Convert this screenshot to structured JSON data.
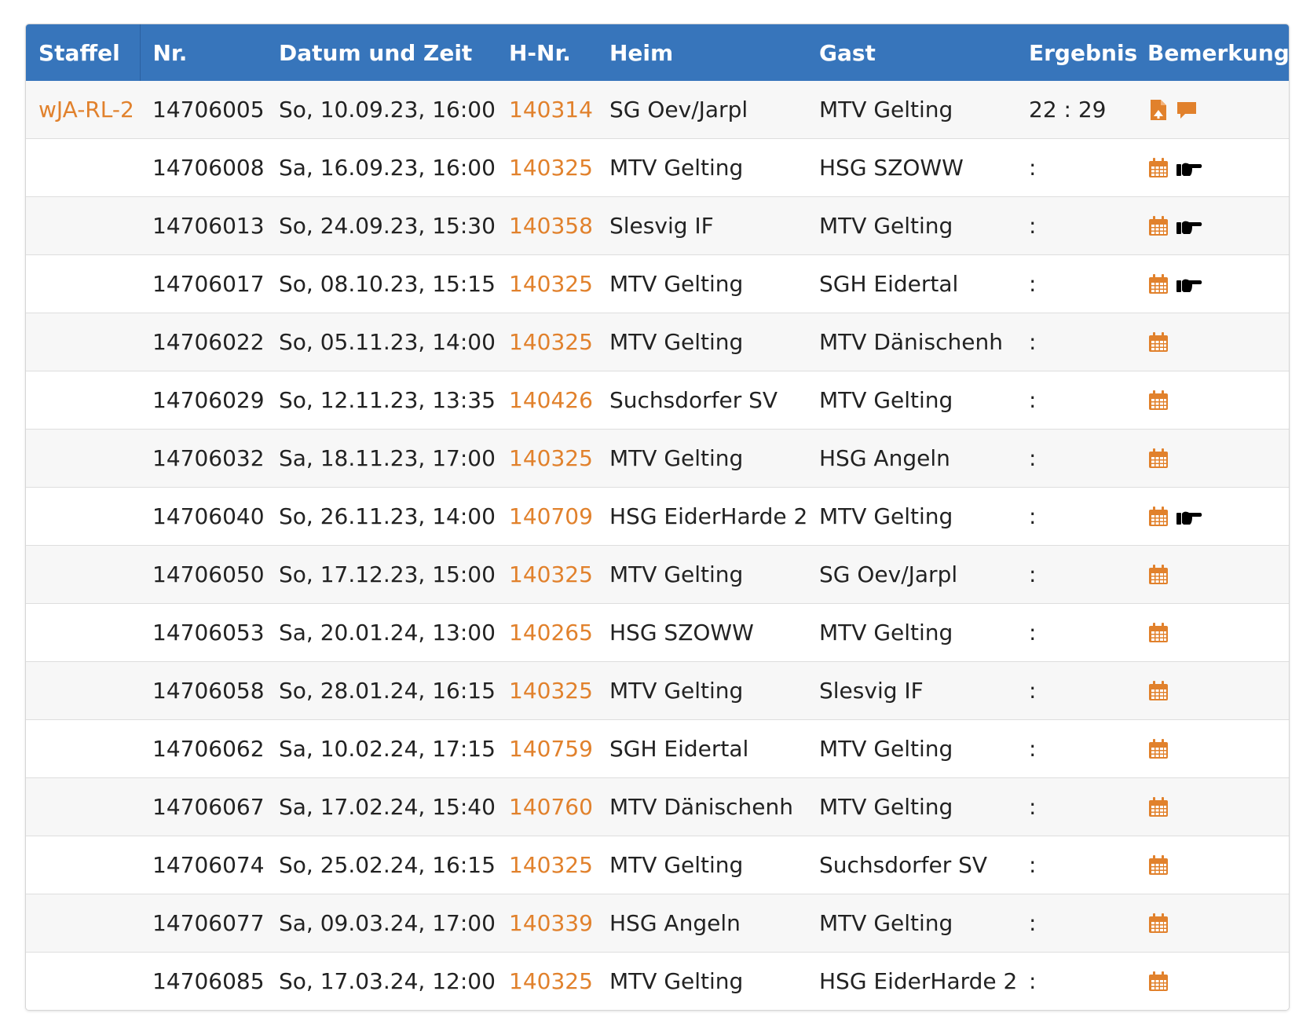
{
  "colors": {
    "header_bg": "#3775bb",
    "link": "#e1812c",
    "icon": "#e1812c"
  },
  "columns": [
    "Staffel",
    "Nr.",
    "Datum und Zeit",
    "H-Nr.",
    "Heim",
    "Gast",
    "Ergebnis",
    "Bemerkung"
  ],
  "rows": [
    {
      "staffel": "wJA-RL-2",
      "nr": "14706005",
      "datum": "So, 10.09.23, 16:00h",
      "hnr": "140314",
      "heim": "SG Oev/Jarpl",
      "gast": "MTV Gelting",
      "ergebnis": "22 : 29",
      "icons": [
        "report-icon",
        "comment-icon"
      ]
    },
    {
      "staffel": "",
      "nr": "14706008",
      "datum": "Sa, 16.09.23, 16:00h",
      "hnr": "140325",
      "heim": "MTV Gelting",
      "gast": "HSG SZOWW",
      "ergebnis": ":",
      "icons": [
        "calendar-icon",
        "pointing-hand-icon"
      ]
    },
    {
      "staffel": "",
      "nr": "14706013",
      "datum": "So, 24.09.23, 15:30h",
      "hnr": "140358",
      "heim": "Slesvig IF",
      "gast": "MTV Gelting",
      "ergebnis": ":",
      "icons": [
        "calendar-icon",
        "pointing-hand-icon"
      ]
    },
    {
      "staffel": "",
      "nr": "14706017",
      "datum": "So, 08.10.23, 15:15h",
      "hnr": "140325",
      "heim": "MTV Gelting",
      "gast": "SGH Eidertal",
      "ergebnis": ":",
      "icons": [
        "calendar-icon",
        "pointing-hand-icon"
      ]
    },
    {
      "staffel": "",
      "nr": "14706022",
      "datum": "So, 05.11.23, 14:00h",
      "hnr": "140325",
      "heim": "MTV Gelting",
      "gast": "MTV Dänischenh",
      "ergebnis": ":",
      "icons": [
        "calendar-icon"
      ]
    },
    {
      "staffel": "",
      "nr": "14706029",
      "datum": "So, 12.11.23, 13:35h",
      "hnr": "140426",
      "heim": "Suchsdorfer SV",
      "gast": "MTV Gelting",
      "ergebnis": ":",
      "icons": [
        "calendar-icon"
      ]
    },
    {
      "staffel": "",
      "nr": "14706032",
      "datum": "Sa, 18.11.23, 17:00h",
      "hnr": "140325",
      "heim": "MTV Gelting",
      "gast": "HSG Angeln",
      "ergebnis": ":",
      "icons": [
        "calendar-icon"
      ]
    },
    {
      "staffel": "",
      "nr": "14706040",
      "datum": "So, 26.11.23, 14:00h",
      "hnr": "140709",
      "heim": "HSG EiderHarde 2",
      "gast": "MTV Gelting",
      "ergebnis": ":",
      "icons": [
        "calendar-icon",
        "pointing-hand-icon"
      ]
    },
    {
      "staffel": "",
      "nr": "14706050",
      "datum": "So, 17.12.23, 15:00h",
      "hnr": "140325",
      "heim": "MTV Gelting",
      "gast": "SG Oev/Jarpl",
      "ergebnis": ":",
      "icons": [
        "calendar-icon"
      ]
    },
    {
      "staffel": "",
      "nr": "14706053",
      "datum": "Sa, 20.01.24, 13:00h",
      "hnr": "140265",
      "heim": "HSG SZOWW",
      "gast": "MTV Gelting",
      "ergebnis": ":",
      "icons": [
        "calendar-icon"
      ]
    },
    {
      "staffel": "",
      "nr": "14706058",
      "datum": "So, 28.01.24, 16:15h",
      "hnr": "140325",
      "heim": "MTV Gelting",
      "gast": "Slesvig IF",
      "ergebnis": ":",
      "icons": [
        "calendar-icon"
      ]
    },
    {
      "staffel": "",
      "nr": "14706062",
      "datum": "Sa, 10.02.24, 17:15h",
      "hnr": "140759",
      "heim": "SGH Eidertal",
      "gast": "MTV Gelting",
      "ergebnis": ":",
      "icons": [
        "calendar-icon"
      ]
    },
    {
      "staffel": "",
      "nr": "14706067",
      "datum": "Sa, 17.02.24, 15:40h",
      "hnr": "140760",
      "heim": "MTV Dänischenh",
      "gast": "MTV Gelting",
      "ergebnis": ":",
      "icons": [
        "calendar-icon"
      ]
    },
    {
      "staffel": "",
      "nr": "14706074",
      "datum": "So, 25.02.24, 16:15h",
      "hnr": "140325",
      "heim": "MTV Gelting",
      "gast": "Suchsdorfer SV",
      "ergebnis": ":",
      "icons": [
        "calendar-icon"
      ]
    },
    {
      "staffel": "",
      "nr": "14706077",
      "datum": "Sa, 09.03.24, 17:00h",
      "hnr": "140339",
      "heim": "HSG Angeln",
      "gast": "MTV Gelting",
      "ergebnis": ":",
      "icons": [
        "calendar-icon"
      ]
    },
    {
      "staffel": "",
      "nr": "14706085",
      "datum": "So, 17.03.24, 12:00h",
      "hnr": "140325",
      "heim": "MTV Gelting",
      "gast": "HSG EiderHarde 2",
      "ergebnis": ":",
      "icons": [
        "calendar-icon"
      ]
    }
  ]
}
